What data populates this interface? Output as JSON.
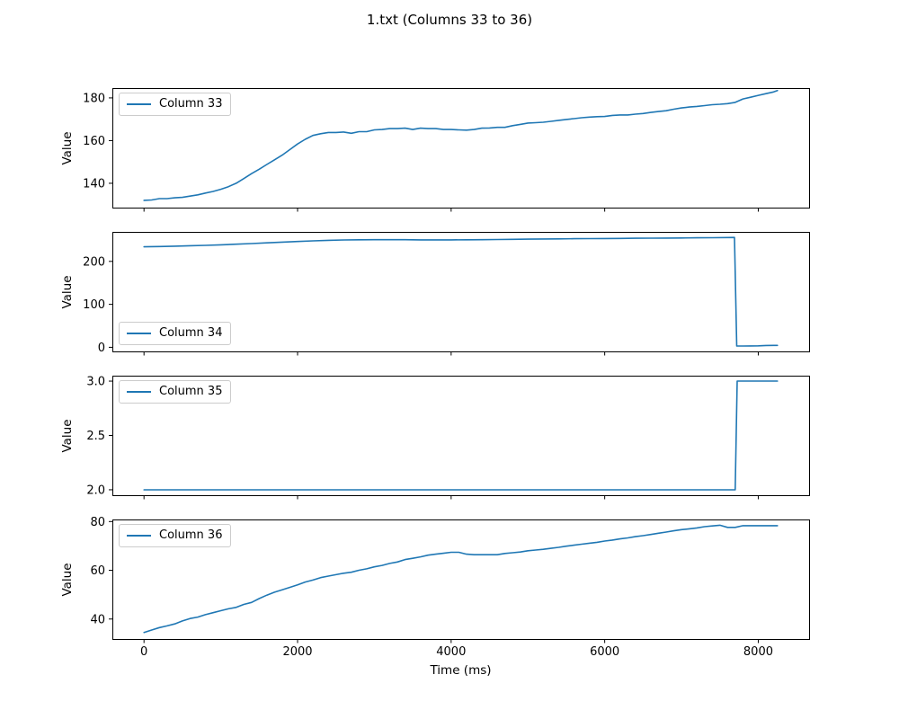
{
  "figure": {
    "title": "1.txt (Columns 33 to 36)",
    "xlabel": "Time (ms)",
    "ylabel": "Value",
    "line_color": "#1f77b4",
    "background": "#ffffff"
  },
  "chart_data": [
    {
      "type": "line",
      "series_name": "Column 33",
      "legend_position": "upper left",
      "grid": false,
      "xlim": [
        -412,
        8662
      ],
      "ylim": [
        128.6,
        184.6
      ],
      "xticks": [
        0,
        2000,
        4000,
        6000,
        8000
      ],
      "xtick_labels": [],
      "yticks": [
        140,
        160,
        180
      ],
      "ytick_labels": [
        "140",
        "160",
        "180"
      ],
      "x": [
        0,
        100,
        200,
        300,
        400,
        500,
        600,
        700,
        800,
        900,
        1000,
        1100,
        1200,
        1300,
        1400,
        1500,
        1600,
        1700,
        1800,
        1900,
        2000,
        2100,
        2200,
        2300,
        2400,
        2500,
        2600,
        2700,
        2800,
        2900,
        3000,
        3100,
        3200,
        3300,
        3400,
        3500,
        3600,
        3700,
        3800,
        3900,
        4000,
        4100,
        4200,
        4300,
        4400,
        4500,
        4600,
        4700,
        4800,
        4900,
        5000,
        5100,
        5200,
        5300,
        5400,
        5500,
        5600,
        5700,
        5800,
        5900,
        6000,
        6100,
        6200,
        6300,
        6400,
        6500,
        6600,
        6700,
        6800,
        6900,
        7000,
        7100,
        7200,
        7300,
        7400,
        7500,
        7600,
        7700,
        7800,
        7900,
        8000,
        8100,
        8200,
        8250
      ],
      "y": [
        132,
        132.2,
        132.8,
        132.8,
        133.2,
        133.4,
        134,
        134.6,
        135.4,
        136.2,
        137.2,
        138.4,
        140,
        142.2,
        144.5,
        146.6,
        148.8,
        151,
        153.2,
        155.8,
        158.4,
        160.6,
        162.4,
        163.2,
        163.8,
        163.8,
        164,
        163.4,
        164.2,
        164.2,
        165,
        165.2,
        165.6,
        165.6,
        165.8,
        165.2,
        165.8,
        165.6,
        165.6,
        165.2,
        165.2,
        165,
        164.9,
        165.2,
        165.8,
        165.9,
        166.2,
        166.2,
        167,
        167.6,
        168.2,
        168.4,
        168.6,
        169,
        169.5,
        169.9,
        170.3,
        170.7,
        171,
        171.2,
        171.3,
        171.8,
        172,
        172,
        172.4,
        172.7,
        173.2,
        173.6,
        174,
        174.7,
        175.3,
        175.7,
        176,
        176.4,
        176.8,
        177,
        177.3,
        177.9,
        179.5,
        180.3,
        181.2,
        182,
        182.8,
        183.4
      ]
    },
    {
      "type": "line",
      "series_name": "Column 34",
      "legend_position": "lower left",
      "grid": false,
      "xlim": [
        -412,
        8662
      ],
      "ylim": [
        -9.6,
        268.7
      ],
      "xticks": [
        0,
        2000,
        4000,
        6000,
        8000
      ],
      "xtick_labels": [],
      "yticks": [
        0,
        100,
        200
      ],
      "ytick_labels": [
        "0",
        "100",
        "200"
      ],
      "x": [
        0,
        200,
        400,
        600,
        800,
        1000,
        1200,
        1400,
        1600,
        1800,
        2000,
        2200,
        2400,
        2600,
        2800,
        3000,
        3200,
        3400,
        3600,
        3800,
        4000,
        4200,
        4400,
        4600,
        4800,
        5000,
        5200,
        5400,
        5600,
        5800,
        6000,
        6200,
        6400,
        6600,
        6800,
        7000,
        7200,
        7400,
        7600,
        7690,
        7720,
        7800,
        7900,
        8000,
        8100,
        8200,
        8250
      ],
      "y": [
        234,
        234.6,
        235.4,
        236.4,
        237.4,
        238.6,
        240,
        241.6,
        243.2,
        244.8,
        246.4,
        247.8,
        249,
        249.8,
        250.2,
        250.4,
        250.4,
        250.4,
        250.1,
        250,
        250,
        250.2,
        250.5,
        250.9,
        251.3,
        251.8,
        252.1,
        252.4,
        252.7,
        253,
        253.2,
        253.5,
        253.8,
        254,
        254.3,
        254.5,
        254.8,
        255.1,
        255.5,
        255.8,
        3,
        3,
        3.2,
        3.4,
        4.2,
        4.5,
        4.5
      ]
    },
    {
      "type": "line",
      "series_name": "Column 35",
      "legend_position": "upper left",
      "grid": false,
      "xlim": [
        -412,
        8662
      ],
      "ylim": [
        1.95,
        3.05
      ],
      "xticks": [
        0,
        2000,
        4000,
        6000,
        8000
      ],
      "xtick_labels": [],
      "yticks": [
        2.0,
        2.5,
        3.0
      ],
      "ytick_labels": [
        "2.0",
        "2.5",
        "3.0"
      ],
      "x": [
        0,
        1000,
        2000,
        3000,
        4000,
        5000,
        6000,
        7000,
        7700,
        7725,
        7800,
        8000,
        8250
      ],
      "y": [
        2,
        2,
        2,
        2,
        2,
        2,
        2,
        2,
        2,
        3,
        3,
        3,
        3
      ]
    },
    {
      "type": "line",
      "series_name": "Column 36",
      "legend_position": "upper left",
      "grid": false,
      "xlim": [
        -412,
        8662
      ],
      "ylim": [
        31.8,
        80.85
      ],
      "xticks": [
        0,
        2000,
        4000,
        6000,
        8000
      ],
      "xtick_labels": [
        "0",
        "2000",
        "4000",
        "6000",
        "8000"
      ],
      "yticks": [
        40,
        60,
        80
      ],
      "ytick_labels": [
        "40",
        "60",
        "80"
      ],
      "x": [
        0,
        100,
        200,
        300,
        400,
        500,
        600,
        700,
        800,
        900,
        1000,
        1100,
        1200,
        1300,
        1400,
        1500,
        1600,
        1700,
        1800,
        1900,
        2000,
        2100,
        2200,
        2300,
        2400,
        2500,
        2600,
        2700,
        2800,
        2900,
        3000,
        3100,
        3200,
        3300,
        3400,
        3500,
        3600,
        3700,
        3800,
        3900,
        4000,
        4100,
        4200,
        4300,
        4400,
        4500,
        4600,
        4700,
        4800,
        4900,
        5000,
        5100,
        5200,
        5300,
        5400,
        5500,
        5600,
        5700,
        5800,
        5900,
        6000,
        6100,
        6200,
        6300,
        6400,
        6500,
        6600,
        6700,
        6800,
        6900,
        7000,
        7100,
        7200,
        7300,
        7400,
        7500,
        7600,
        7700,
        7800,
        7900,
        8000,
        8100,
        8200,
        8250
      ],
      "y": [
        34.5,
        35.5,
        36.5,
        37.2,
        38,
        39.2,
        40.2,
        40.8,
        41.8,
        42.6,
        43.4,
        44.2,
        44.8,
        46,
        46.8,
        48.4,
        49.8,
        51,
        52,
        53,
        54,
        55.2,
        56,
        57,
        57.6,
        58.2,
        58.8,
        59.2,
        60,
        60.6,
        61.4,
        62,
        62.8,
        63.4,
        64.4,
        64.9,
        65.5,
        66.2,
        66.6,
        67,
        67.4,
        67.4,
        66.6,
        66.4,
        66.4,
        66.4,
        66.4,
        66.9,
        67.2,
        67.5,
        68,
        68.3,
        68.6,
        69,
        69.4,
        69.9,
        70.3,
        70.7,
        71.1,
        71.5,
        72,
        72.4,
        72.9,
        73.3,
        73.8,
        74.2,
        74.7,
        75.2,
        75.7,
        76.2,
        76.7,
        77,
        77.4,
        77.9,
        78.2,
        78.5,
        77.6,
        77.6,
        78.3,
        78.3,
        78.3,
        78.3,
        78.3,
        78.3
      ]
    }
  ]
}
